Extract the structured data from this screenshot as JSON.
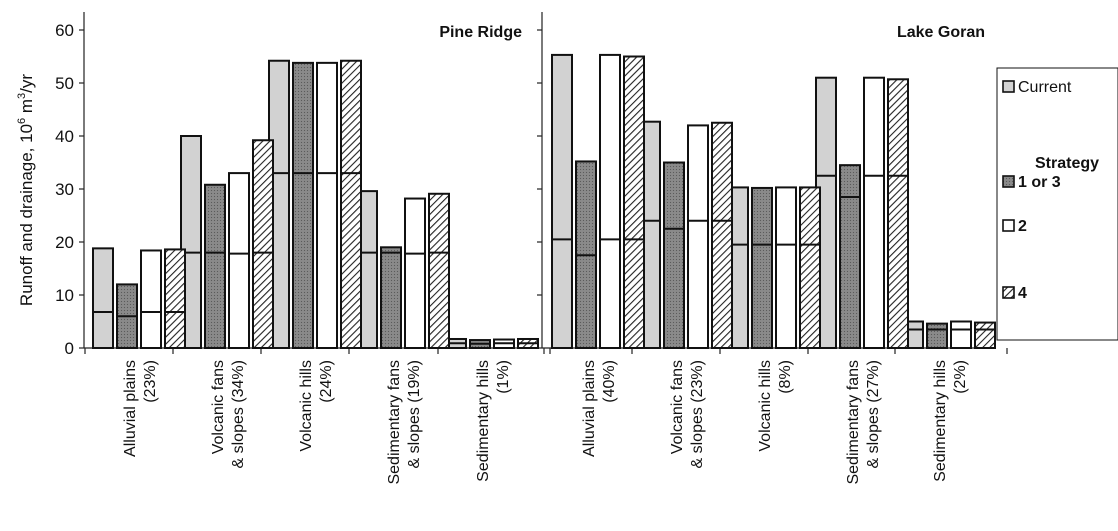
{
  "ylabel_main": "Runoff and drainage, 10",
  "ylabel_sup": "6",
  "ylabel_unit_m": " m",
  "ylabel_sup2": "3",
  "ylabel_rest": "/yr",
  "legend": {
    "current": "Current",
    "strategy_title": "Strategy",
    "s13": "1 or 3",
    "s2": "2",
    "s4": "4"
  },
  "colors": {
    "current": "#d2d2d2",
    "s13": "#8a8a8a",
    "s2": "#ffffff",
    "s4": "#b4b4b4",
    "outline": "#111111"
  },
  "chart_data": [
    {
      "type": "bar",
      "title": "Pine Ridge",
      "ylim": [
        0,
        60
      ],
      "yticks": [
        0,
        10,
        20,
        30,
        40,
        50,
        60
      ],
      "categories": [
        [
          "Alluvial plains",
          "(23%)"
        ],
        [
          "Volcanic fans",
          "& slopes (34%)"
        ],
        [
          "Volcanic hills",
          "(24%)"
        ],
        [
          "Sedimentary fans",
          "& slopes (19%)"
        ],
        [
          "Sedimentary hills",
          "(1%)"
        ]
      ],
      "series": [
        {
          "name": "Current",
          "total": [
            18.8,
            40,
            54.2,
            29.6,
            1.7
          ],
          "lower": [
            6.8,
            18,
            33,
            18,
            0.9
          ]
        },
        {
          "name": "1 or 3",
          "total": [
            12,
            30.8,
            53.8,
            19,
            1.5
          ],
          "lower": [
            6,
            18,
            33,
            18,
            0.8
          ]
        },
        {
          "name": "2",
          "total": [
            18.4,
            33,
            53.8,
            28.2,
            1.6
          ],
          "lower": [
            6.8,
            17.8,
            33,
            17.8,
            0.9
          ]
        },
        {
          "name": "4",
          "total": [
            18.6,
            39.2,
            54.2,
            29.1,
            1.7
          ],
          "lower": [
            6.8,
            18,
            33,
            18,
            0.9
          ]
        }
      ]
    },
    {
      "type": "bar",
      "title": "Lake Goran",
      "ylim": [
        0,
        60
      ],
      "categories": [
        [
          "Alluvial plains",
          "(40%)"
        ],
        [
          "Volcanic fans",
          "& slopes (23%)"
        ],
        [
          "Volcanic hills",
          "(8%)"
        ],
        [
          "Sedimentary fans",
          "& slopes (27%)"
        ],
        [
          "Sedimentary hills",
          "(2%)"
        ]
      ],
      "series": [
        {
          "name": "Current",
          "total": [
            55.3,
            42.7,
            30.3,
            51,
            5
          ],
          "lower": [
            20.5,
            24,
            19.5,
            32.5,
            3.5
          ]
        },
        {
          "name": "1 or 3",
          "total": [
            35.2,
            35,
            30.2,
            34.5,
            4.6
          ],
          "lower": [
            17.5,
            22.5,
            19.5,
            28.5,
            3.5
          ]
        },
        {
          "name": "2",
          "total": [
            55.3,
            42,
            30.3,
            51,
            5
          ],
          "lower": [
            20.5,
            24,
            19.5,
            32.5,
            3.5
          ]
        },
        {
          "name": "4",
          "total": [
            55,
            42.5,
            30.3,
            50.7,
            4.8
          ],
          "lower": [
            20.5,
            24,
            19.5,
            32.5,
            3.5
          ]
        }
      ]
    }
  ]
}
